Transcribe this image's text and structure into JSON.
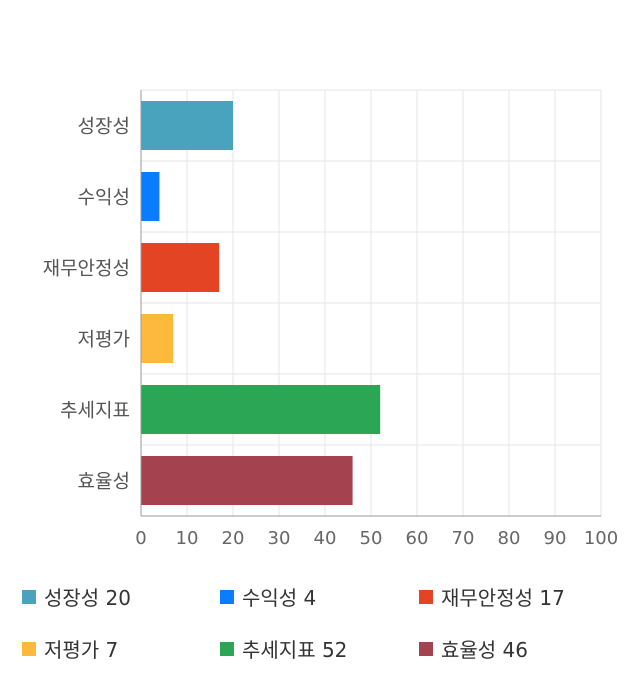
{
  "chart_data": {
    "type": "bar",
    "orientation": "horizontal",
    "categories": [
      "성장성",
      "수익성",
      "재무안정성",
      "저평가",
      "추세지표",
      "효율성"
    ],
    "values": [
      20,
      4,
      17,
      7,
      52,
      46
    ],
    "colors": [
      "#4aa3bd",
      "#0a7cff",
      "#e34524",
      "#fdb93b",
      "#2aa654",
      "#a5424f"
    ],
    "xlim": [
      0,
      100
    ],
    "xticks": [
      0,
      10,
      20,
      30,
      40,
      50,
      60,
      70,
      80,
      90,
      100
    ],
    "grid": true,
    "legend_position": "bottom"
  },
  "legend": [
    {
      "text": "성장성 20",
      "color": "#4aa3bd"
    },
    {
      "text": "수익성 4",
      "color": "#0a7cff"
    },
    {
      "text": "재무안정성 17",
      "color": "#e34524"
    },
    {
      "text": "저평가 7",
      "color": "#fdb93b"
    },
    {
      "text": "추세지표 52",
      "color": "#2aa654"
    },
    {
      "text": "효율성 46",
      "color": "#a5424f"
    }
  ]
}
